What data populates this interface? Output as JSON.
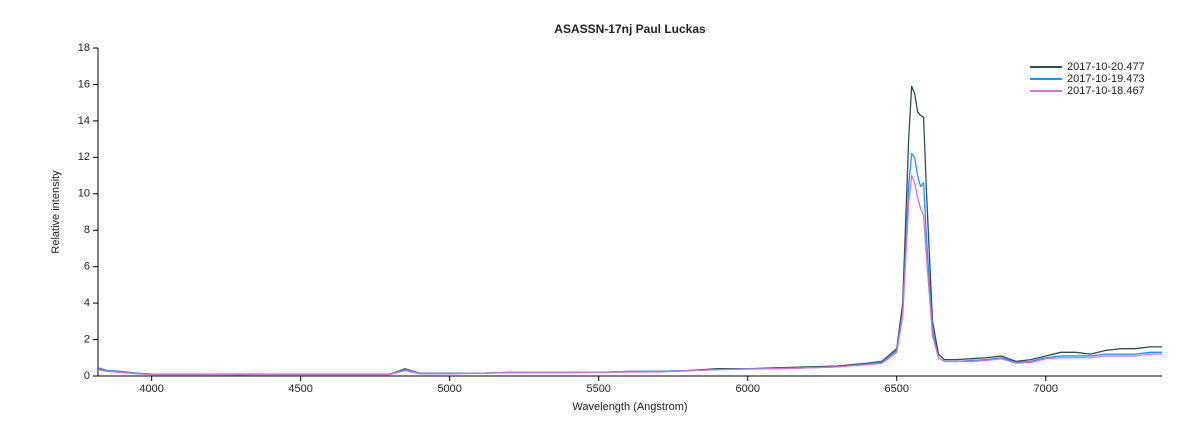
{
  "chart_data": {
    "type": "line",
    "title": "ASASSN-17nj  Paul Luckas",
    "x_label": "Wavelength (Angstrom)",
    "y_label": "Relative intensity",
    "xlim": [
      3820,
      7390
    ],
    "ylim": [
      0,
      18
    ],
    "xticks": [
      4000,
      4500,
      5000,
      5500,
      6000,
      6500,
      7000
    ],
    "yticks": [
      0,
      2,
      4,
      6,
      8,
      10,
      12,
      14,
      16,
      18
    ],
    "legend": "upper-right",
    "x": [
      3820,
      3850,
      3900,
      3950,
      4000,
      4100,
      4200,
      4300,
      4400,
      4500,
      4600,
      4700,
      4800,
      4850,
      4900,
      5000,
      5100,
      5200,
      5300,
      5400,
      5500,
      5600,
      5700,
      5800,
      5900,
      6000,
      6100,
      6200,
      6300,
      6400,
      6450,
      6500,
      6520,
      6540,
      6550,
      6560,
      6570,
      6580,
      6590,
      6600,
      6620,
      6640,
      6660,
      6700,
      6750,
      6800,
      6850,
      6900,
      6950,
      7000,
      7050,
      7100,
      7150,
      7200,
      7250,
      7300,
      7350,
      7390
    ],
    "series": [
      {
        "name": "2017-10-20.477",
        "color": "#2f4f4f",
        "values": [
          0.4,
          0.3,
          0.2,
          0.15,
          0.1,
          0.1,
          0.1,
          0.1,
          0.1,
          0.1,
          0.1,
          0.1,
          0.1,
          0.4,
          0.15,
          0.15,
          0.15,
          0.2,
          0.2,
          0.2,
          0.2,
          0.25,
          0.25,
          0.3,
          0.4,
          0.4,
          0.45,
          0.5,
          0.55,
          0.7,
          0.8,
          1.5,
          4,
          13,
          15.9,
          15.5,
          14.5,
          14.3,
          14.2,
          10,
          3,
          1.2,
          0.9,
          0.9,
          0.95,
          1.0,
          1.1,
          0.8,
          0.9,
          1.1,
          1.3,
          1.3,
          1.2,
          1.4,
          1.5,
          1.5,
          1.6,
          1.6
        ]
      },
      {
        "name": "2017-10-19.473",
        "color": "#1e90ff",
        "values": [
          0.45,
          0.3,
          0.25,
          0.15,
          0.1,
          0.1,
          0.1,
          0.08,
          0.1,
          0.1,
          0.1,
          0.1,
          0.1,
          0.35,
          0.15,
          0.15,
          0.15,
          0.2,
          0.2,
          0.2,
          0.2,
          0.25,
          0.25,
          0.3,
          0.35,
          0.4,
          0.4,
          0.45,
          0.5,
          0.65,
          0.75,
          1.4,
          3.5,
          10.5,
          12.2,
          12.0,
          11.0,
          10.4,
          10.6,
          7.5,
          2.5,
          1.0,
          0.8,
          0.8,
          0.85,
          0.9,
          1.0,
          0.75,
          0.8,
          1.0,
          1.1,
          1.1,
          1.1,
          1.2,
          1.2,
          1.2,
          1.3,
          1.3
        ]
      },
      {
        "name": "2017-10-18.467",
        "color": "#da70d6",
        "values": [
          0.35,
          0.25,
          0.2,
          0.12,
          0.08,
          0.08,
          0.08,
          0.08,
          0.08,
          0.08,
          0.08,
          0.08,
          0.08,
          0.3,
          0.12,
          0.12,
          0.15,
          0.18,
          0.18,
          0.18,
          0.2,
          0.22,
          0.22,
          0.28,
          0.35,
          0.38,
          0.4,
          0.45,
          0.5,
          0.62,
          0.7,
          1.3,
          3.3,
          9.5,
          11.0,
          10.6,
          9.8,
          9.2,
          8.8,
          6.5,
          2.2,
          1.0,
          0.8,
          0.8,
          0.8,
          0.85,
          0.95,
          0.7,
          0.75,
          0.95,
          1.0,
          1.0,
          1.0,
          1.1,
          1.1,
          1.1,
          1.2,
          1.2
        ]
      }
    ]
  }
}
